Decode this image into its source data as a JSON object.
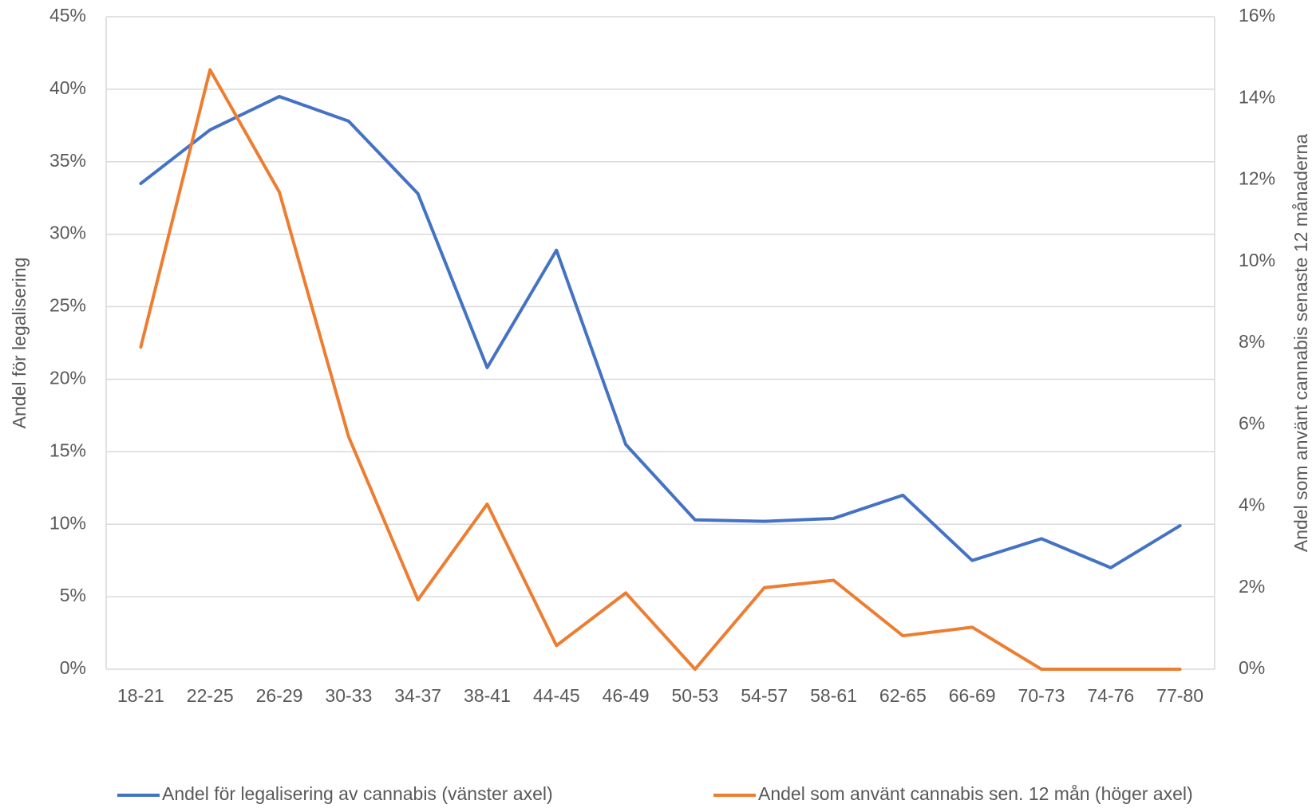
{
  "chart_data": {
    "type": "line",
    "categories": [
      "18-21",
      "22-25",
      "26-29",
      "30-33",
      "34-37",
      "38-41",
      "44-45",
      "46-49",
      "50-53",
      "54-57",
      "58-61",
      "62-65",
      "66-69",
      "70-73",
      "74-76",
      "77-80"
    ],
    "series": [
      {
        "name": "Andel för legalisering av cannabis (vänster axel)",
        "color": "#4472c4",
        "values": [
          33.5,
          37.2,
          39.5,
          37.8,
          32.8,
          20.8,
          28.9,
          15.5,
          10.3,
          10.2,
          10.4,
          12.0,
          7.5,
          9.0,
          7.0,
          9.9
        ]
      },
      {
        "name": "Andel som använt cannabis sen. 12 mån (höger axel)",
        "color": "#ed7d31",
        "axis": "y2",
        "values": [
          7.9,
          14.7,
          11.7,
          5.7,
          1.7,
          4.05,
          0.58,
          1.87,
          0,
          2.0,
          2.18,
          0.82,
          1.03,
          0,
          0,
          0
        ]
      }
    ],
    "ylabel": "Andel för legalisering",
    "y2label": "Andel som använt cannabis senaste 12 månaderna",
    "ylim": [
      0,
      45
    ],
    "yticks": [
      {
        "value": 0,
        "label": "0%"
      },
      {
        "value": 5,
        "label": "5%"
      },
      {
        "value": 10,
        "label": "10%"
      },
      {
        "value": 15,
        "label": "15%"
      },
      {
        "value": 20,
        "label": "20%"
      },
      {
        "value": 25,
        "label": "25%"
      },
      {
        "value": 30,
        "label": "30%"
      },
      {
        "value": 35,
        "label": "35%"
      },
      {
        "value": 40,
        "label": "40%"
      },
      {
        "value": 45,
        "label": "45%"
      }
    ],
    "y2lim": [
      0,
      16
    ],
    "y2ticks": [
      {
        "value": 0,
        "label": "0%"
      },
      {
        "value": 2,
        "label": "2%"
      },
      {
        "value": 4,
        "label": "4%"
      },
      {
        "value": 6,
        "label": "6%"
      },
      {
        "value": 8,
        "label": "8%"
      },
      {
        "value": 10,
        "label": "10%"
      },
      {
        "value": 12,
        "label": "12%"
      },
      {
        "value": 14,
        "label": "14%"
      },
      {
        "value": 16,
        "label": "16%"
      }
    ],
    "grid": true,
    "legend": "bottom"
  }
}
